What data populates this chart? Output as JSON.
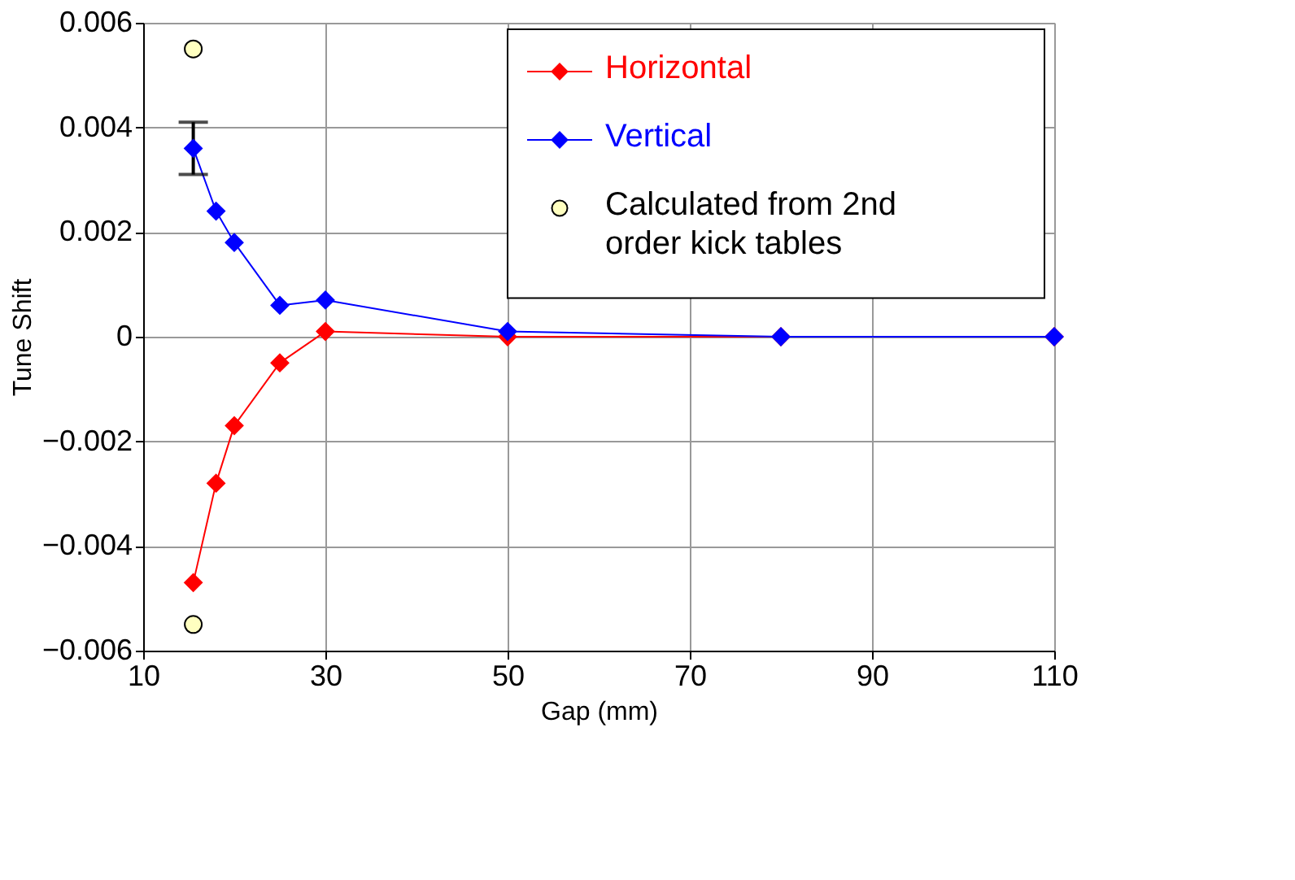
{
  "chart_data": {
    "type": "line",
    "xlabel": "Gap (mm)",
    "ylabel": "Tune Shift",
    "xlim": [
      10,
      110
    ],
    "xticks": [
      10,
      30,
      50,
      70,
      90,
      110
    ],
    "ylim": [
      -0.006,
      0.006
    ],
    "yticks": [
      -0.006,
      -0.004,
      -0.002,
      0,
      0.002,
      0.004,
      0.006
    ],
    "grid": true,
    "legend": "top right",
    "series": [
      {
        "name": "Horizontal",
        "marker": "diamond",
        "color": "#ff0000",
        "x": [
          15.5,
          18,
          20,
          25,
          30,
          50,
          80,
          110
        ],
        "values": [
          -0.0047,
          -0.0028,
          -0.0017,
          -0.0005,
          0.0001,
          0,
          0,
          0
        ]
      },
      {
        "name": "Vertical",
        "marker": "diamond",
        "color": "#0000ff",
        "x": [
          15.5,
          18,
          20,
          25,
          30,
          50,
          80,
          110
        ],
        "values": [
          0.0036,
          0.0024,
          0.0018,
          0.0006,
          0.0007,
          0.0001,
          0,
          0
        ],
        "errors": [
          [
            0.0031,
            0.0041
          ],
          null,
          null,
          null,
          null,
          null,
          null,
          null
        ]
      },
      {
        "name": "Calculated from 2nd order kick tables",
        "type": "scatter",
        "marker": "circle",
        "color": "#ffffc0",
        "x": [
          15.5,
          15.5
        ],
        "values": [
          0.0055,
          -0.0055
        ]
      }
    ]
  }
}
